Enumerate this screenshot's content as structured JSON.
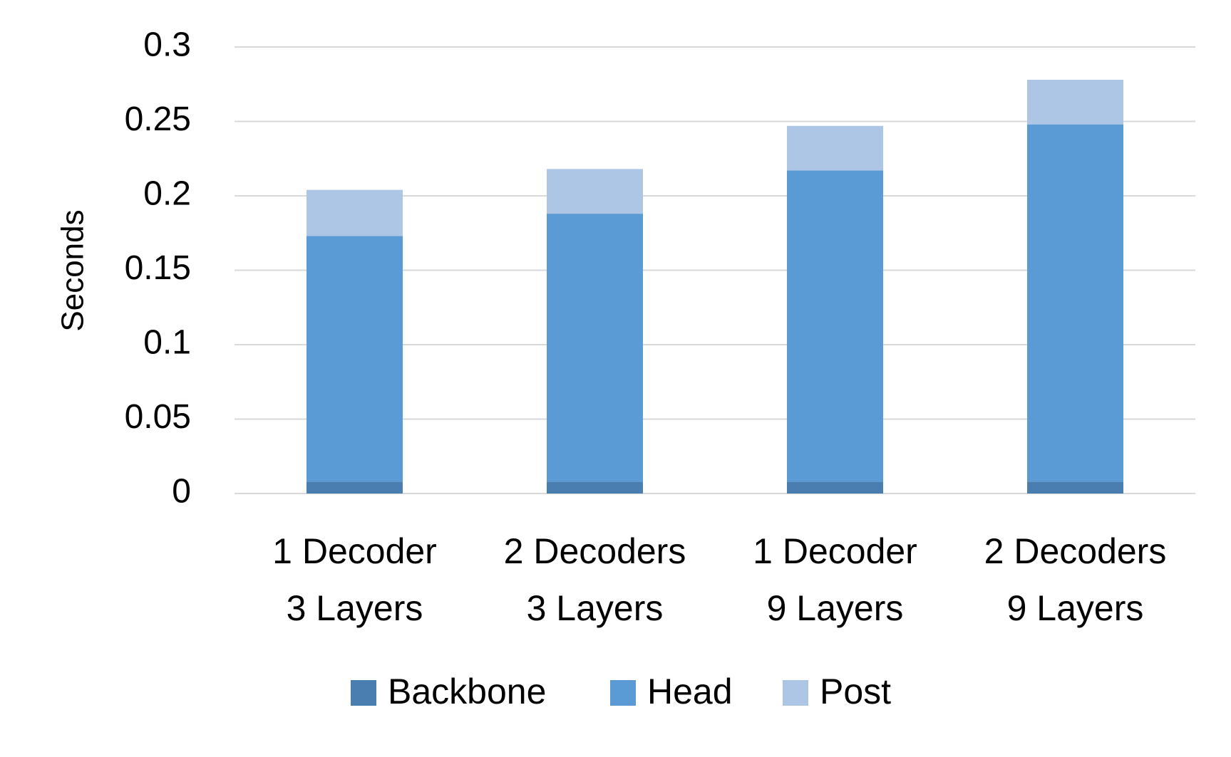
{
  "chart_data": {
    "type": "stacked-bar",
    "y_label": "Seconds",
    "categories": [
      "1 Decoder\n3 Layers",
      "2 Decoders\n3 Layers",
      "1 Decoder\n9 Layers",
      "2 Decoders\n9 Layers"
    ],
    "series": [
      {
        "name": "Backbone",
        "color": "#4a7eb0",
        "values": [
          0.008,
          0.008,
          0.008,
          0.008
        ]
      },
      {
        "name": "Head",
        "color": "#5b9bd5",
        "values": [
          0.165,
          0.18,
          0.209,
          0.24
        ]
      },
      {
        "name": "Post",
        "color": "#adc6e5",
        "values": [
          0.031,
          0.03,
          0.03,
          0.03
        ]
      }
    ],
    "ylim": [
      0,
      0.3
    ],
    "yticks": [
      0,
      0.05,
      0.1,
      0.15,
      0.2,
      0.25,
      0.3
    ],
    "grid": true,
    "legend": "bottom"
  }
}
